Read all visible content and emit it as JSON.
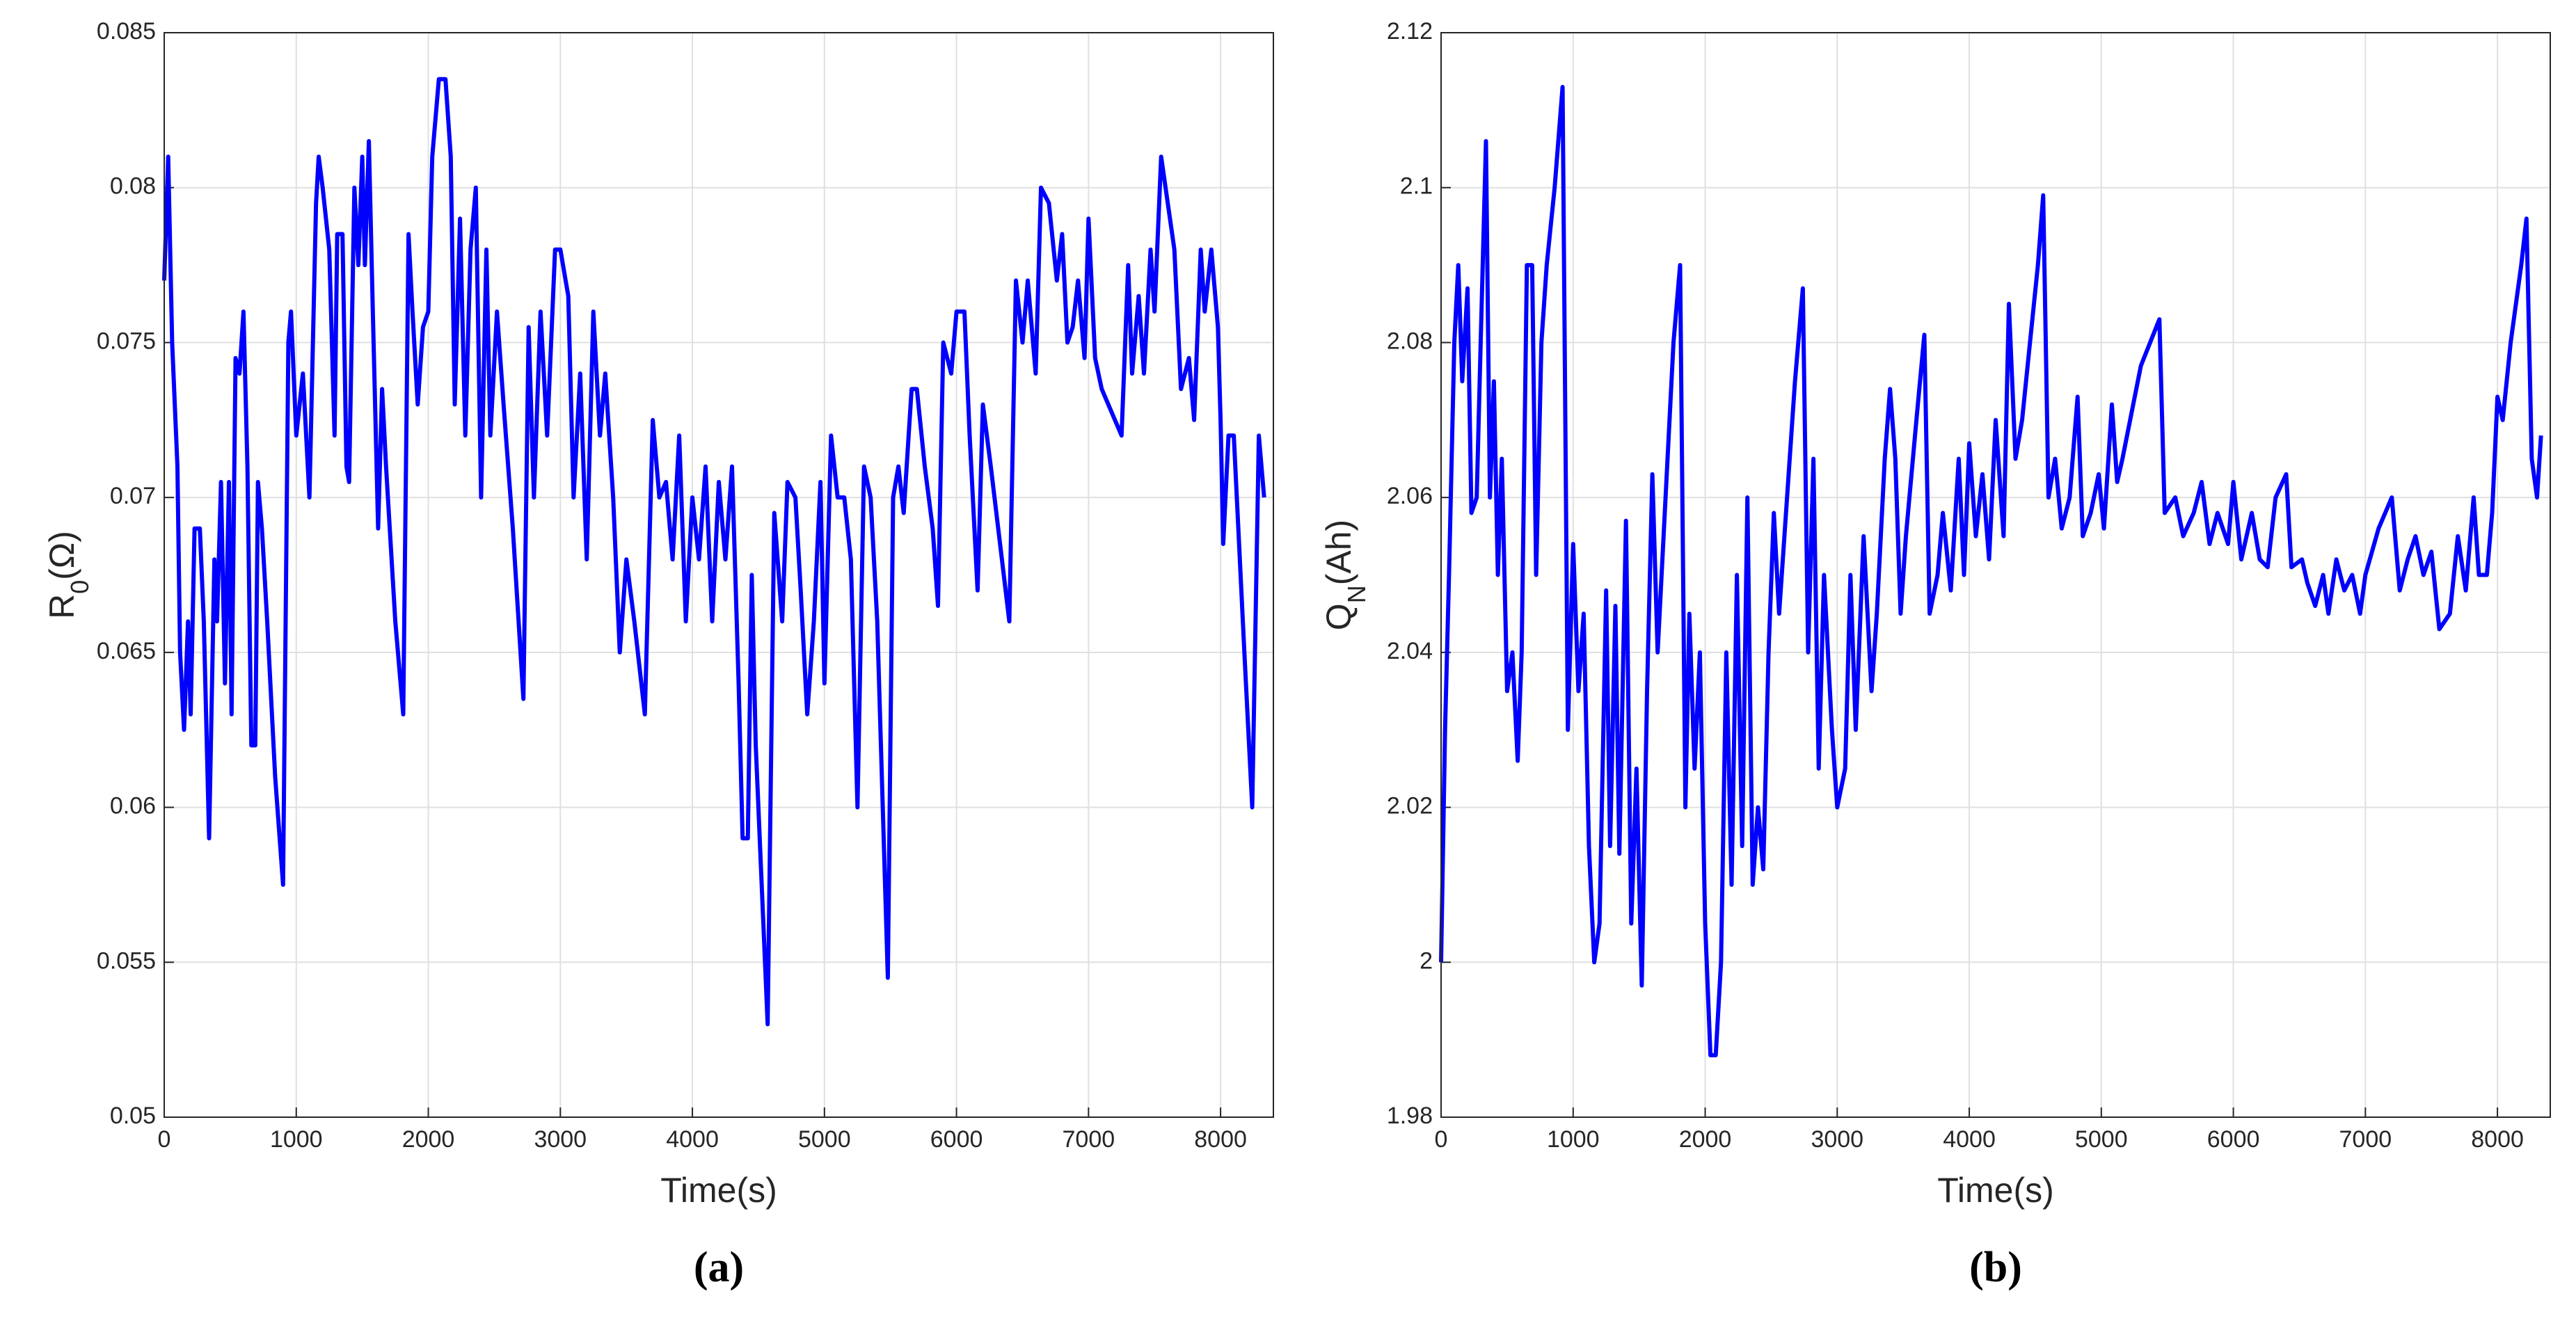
{
  "chart_data": [
    {
      "type": "line",
      "color": "#0000ff",
      "grid": true,
      "xlabel": "Time(s)",
      "ylabel": [
        "R",
        "0",
        "(Ω)"
      ],
      "caption": "(a)",
      "xlim": [
        0,
        8400
      ],
      "xticks": [
        0,
        1000,
        2000,
        3000,
        4000,
        5000,
        6000,
        7000,
        8000
      ],
      "ylim": [
        0.05,
        0.085
      ],
      "yticks": [
        0.05,
        0.055,
        0.06,
        0.065,
        0.07,
        0.075,
        0.08,
        0.085
      ],
      "x": [
        0,
        30,
        60,
        100,
        120,
        150,
        180,
        200,
        230,
        270,
        300,
        340,
        380,
        400,
        430,
        460,
        490,
        510,
        540,
        570,
        600,
        630,
        660,
        690,
        710,
        740,
        780,
        840,
        900,
        940,
        960,
        1000,
        1050,
        1100,
        1150,
        1170,
        1200,
        1250,
        1290,
        1310,
        1350,
        1380,
        1400,
        1440,
        1470,
        1500,
        1520,
        1550,
        1580,
        1620,
        1650,
        1680,
        1750,
        1810,
        1850,
        1880,
        1920,
        1960,
        2000,
        2030,
        2080,
        2130,
        2170,
        2200,
        2240,
        2280,
        2320,
        2360,
        2400,
        2440,
        2470,
        2520,
        2570,
        2640,
        2720,
        2760,
        2800,
        2850,
        2900,
        2960,
        3000,
        3060,
        3100,
        3150,
        3200,
        3250,
        3300,
        3340,
        3400,
        3450,
        3500,
        3560,
        3640,
        3700,
        3750,
        3800,
        3850,
        3900,
        3950,
        4000,
        4050,
        4100,
        4150,
        4200,
        4250,
        4300,
        4350,
        4380,
        4420,
        4450,
        4480,
        4520,
        4570,
        4620,
        4680,
        4720,
        4780,
        4820,
        4870,
        4920,
        4970,
        5000,
        5050,
        5100,
        5150,
        5200,
        5250,
        5300,
        5350,
        5400,
        5480,
        5520,
        5560,
        5600,
        5660,
        5700,
        5760,
        5820,
        5860,
        5900,
        5960,
        6000,
        6060,
        6100,
        6160,
        6200,
        6260,
        6400,
        6450,
        6500,
        6540,
        6600,
        6640,
        6700,
        6760,
        6800,
        6840,
        6880,
        6920,
        6970,
        7000,
        7050,
        7100,
        7200,
        7250,
        7300,
        7330,
        7380,
        7420,
        7470,
        7500,
        7550,
        7600,
        7650,
        7700,
        7760,
        7800,
        7850,
        7880,
        7930,
        7980,
        8000,
        8020,
        8060,
        8100,
        8180,
        8240,
        8290,
        8330
      ],
      "values": [
        0.077,
        0.081,
        0.075,
        0.071,
        0.065,
        0.0625,
        0.066,
        0.063,
        0.069,
        0.069,
        0.066,
        0.059,
        0.068,
        0.066,
        0.0705,
        0.064,
        0.0705,
        0.063,
        0.0745,
        0.074,
        0.076,
        0.071,
        0.062,
        0.062,
        0.0705,
        0.069,
        0.066,
        0.061,
        0.0575,
        0.075,
        0.076,
        0.072,
        0.074,
        0.07,
        0.0795,
        0.081,
        0.08,
        0.078,
        0.072,
        0.0785,
        0.0785,
        0.071,
        0.0705,
        0.08,
        0.0775,
        0.081,
        0.0775,
        0.0815,
        0.076,
        0.069,
        0.0735,
        0.071,
        0.066,
        0.063,
        0.0785,
        0.076,
        0.073,
        0.0755,
        0.076,
        0.081,
        0.0835,
        0.0835,
        0.081,
        0.073,
        0.079,
        0.072,
        0.078,
        0.08,
        0.07,
        0.078,
        0.072,
        0.076,
        0.073,
        0.069,
        0.0635,
        0.0755,
        0.07,
        0.076,
        0.072,
        0.078,
        0.078,
        0.0765,
        0.07,
        0.074,
        0.068,
        0.076,
        0.072,
        0.074,
        0.07,
        0.065,
        0.068,
        0.066,
        0.063,
        0.0725,
        0.07,
        0.0705,
        0.068,
        0.072,
        0.066,
        0.07,
        0.068,
        0.071,
        0.066,
        0.0705,
        0.068,
        0.071,
        0.064,
        0.059,
        0.059,
        0.0675,
        0.062,
        0.058,
        0.053,
        0.0695,
        0.066,
        0.0705,
        0.07,
        0.067,
        0.063,
        0.066,
        0.0705,
        0.064,
        0.072,
        0.07,
        0.07,
        0.068,
        0.06,
        0.071,
        0.07,
        0.066,
        0.0545,
        0.07,
        0.071,
        0.0695,
        0.0735,
        0.0735,
        0.071,
        0.069,
        0.0665,
        0.075,
        0.074,
        0.076,
        0.076,
        0.072,
        0.067,
        0.073,
        0.071,
        0.066,
        0.077,
        0.075,
        0.077,
        0.074,
        0.08,
        0.0795,
        0.077,
        0.0785,
        0.075,
        0.0755,
        0.077,
        0.0745,
        0.079,
        0.0745,
        0.0735,
        0.0725,
        0.072,
        0.0775,
        0.074,
        0.0765,
        0.074,
        0.078,
        0.076,
        0.081,
        0.0795,
        0.078,
        0.0735,
        0.0745,
        0.0725,
        0.078,
        0.076,
        0.078,
        0.0755,
        0.0725,
        0.0685,
        0.072,
        0.072,
        0.065,
        0.06,
        0.072,
        0.07
      ]
    },
    {
      "type": "line",
      "color": "#0000ff",
      "grid": true,
      "xlabel": "Time(s)",
      "ylabel": [
        "Q",
        "N",
        "(Ah)"
      ],
      "caption": "(b)",
      "xlim": [
        0,
        8400
      ],
      "xticks": [
        0,
        1000,
        2000,
        3000,
        4000,
        5000,
        6000,
        7000,
        8000
      ],
      "ylim": [
        1.98,
        2.12
      ],
      "yticks": [
        1.98,
        2,
        2.02,
        2.04,
        2.06,
        2.08,
        2.1,
        2.12
      ],
      "x": [
        0,
        30,
        60,
        100,
        130,
        160,
        200,
        230,
        270,
        300,
        340,
        370,
        400,
        430,
        460,
        500,
        540,
        580,
        610,
        650,
        690,
        720,
        760,
        800,
        860,
        920,
        960,
        1000,
        1040,
        1080,
        1120,
        1160,
        1200,
        1250,
        1280,
        1320,
        1350,
        1400,
        1440,
        1480,
        1520,
        1560,
        1600,
        1640,
        1700,
        1760,
        1810,
        1850,
        1880,
        1920,
        1960,
        2000,
        2040,
        2080,
        2120,
        2160,
        2200,
        2240,
        2280,
        2320,
        2360,
        2400,
        2440,
        2480,
        2520,
        2560,
        2620,
        2680,
        2740,
        2780,
        2820,
        2860,
        2900,
        2960,
        3000,
        3060,
        3100,
        3140,
        3200,
        3260,
        3300,
        3360,
        3400,
        3440,
        3480,
        3520,
        3600,
        3660,
        3700,
        3760,
        3800,
        3860,
        3920,
        3960,
        4000,
        4050,
        4100,
        4150,
        4200,
        4260,
        4300,
        4350,
        4400,
        4460,
        4520,
        4560,
        4600,
        4650,
        4700,
        4760,
        4820,
        4860,
        4920,
        4980,
        5020,
        5080,
        5120,
        5160,
        5300,
        5440,
        5480,
        5560,
        5620,
        5700,
        5760,
        5820,
        5880,
        5960,
        6000,
        6060,
        6140,
        6200,
        6260,
        6320,
        6400,
        6440,
        6520,
        6560,
        6620,
        6680,
        6720,
        6780,
        6840,
        6900,
        6960,
        7000,
        7100,
        7200,
        7260,
        7320,
        7380,
        7440,
        7500,
        7560,
        7640,
        7700,
        7760,
        7820,
        7860,
        7920,
        7960,
        8000,
        8040,
        8100,
        8180,
        8220,
        8260,
        8300,
        8330
      ],
      "values": [
        2.0,
        2.03,
        2.05,
        2.08,
        2.09,
        2.075,
        2.087,
        2.058,
        2.06,
        2.08,
        2.106,
        2.06,
        2.075,
        2.05,
        2.065,
        2.035,
        2.04,
        2.026,
        2.04,
        2.09,
        2.09,
        2.05,
        2.08,
        2.09,
        2.1,
        2.113,
        2.03,
        2.054,
        2.035,
        2.045,
        2.015,
        2.0,
        2.005,
        2.048,
        2.015,
        2.046,
        2.014,
        2.057,
        2.005,
        2.025,
        1.997,
        2.035,
        2.063,
        2.04,
        2.06,
        2.08,
        2.09,
        2.02,
        2.045,
        2.025,
        2.04,
        2.005,
        1.988,
        1.988,
        2.0,
        2.04,
        2.01,
        2.05,
        2.015,
        2.06,
        2.01,
        2.02,
        2.012,
        2.04,
        2.058,
        2.045,
        2.06,
        2.075,
        2.087,
        2.04,
        2.065,
        2.025,
        2.05,
        2.03,
        2.02,
        2.025,
        2.05,
        2.03,
        2.055,
        2.035,
        2.045,
        2.065,
        2.074,
        2.065,
        2.045,
        2.055,
        2.07,
        2.081,
        2.045,
        2.05,
        2.058,
        2.048,
        2.065,
        2.05,
        2.067,
        2.055,
        2.063,
        2.052,
        2.07,
        2.055,
        2.085,
        2.065,
        2.07,
        2.08,
        2.09,
        2.099,
        2.06,
        2.065,
        2.056,
        2.06,
        2.073,
        2.055,
        2.058,
        2.063,
        2.056,
        2.072,
        2.062,
        2.065,
        2.077,
        2.083,
        2.058,
        2.06,
        2.055,
        2.058,
        2.062,
        2.054,
        2.058,
        2.054,
        2.062,
        2.052,
        2.058,
        2.052,
        2.051,
        2.06,
        2.063,
        2.051,
        2.052,
        2.049,
        2.046,
        2.05,
        2.045,
        2.052,
        2.048,
        2.05,
        2.045,
        2.05,
        2.056,
        2.06,
        2.048,
        2.052,
        2.055,
        2.05,
        2.053,
        2.043,
        2.045,
        2.055,
        2.048,
        2.06,
        2.05,
        2.05,
        2.058,
        2.073,
        2.07,
        2.08,
        2.09,
        2.096,
        2.065,
        2.06,
        2.068
      ]
    }
  ]
}
